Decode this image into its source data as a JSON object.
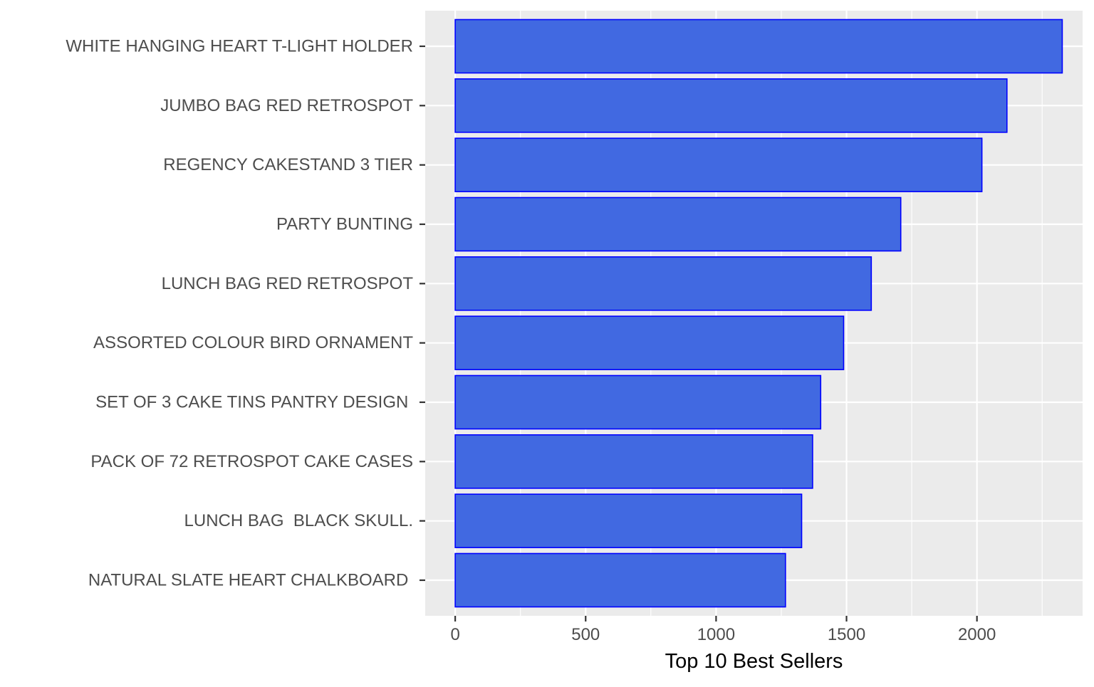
{
  "chart_data": {
    "type": "bar",
    "orientation": "horizontal",
    "categories": [
      "WHITE HANGING HEART T-LIGHT HOLDER",
      "JUMBO BAG RED RETROSPOT",
      "REGENCY CAKESTAND 3 TIER",
      "PARTY BUNTING",
      "LUNCH BAG RED RETROSPOT",
      "ASSORTED COLOUR BIRD ORNAMENT",
      "SET OF 3 CAKE TINS PANTRY DESIGN ",
      "PACK OF 72 RETROSPOT CAKE CASES",
      "LUNCH BAG  BLACK SKULL.",
      "NATURAL SLATE HEART CHALKBOARD "
    ],
    "values": [
      2327,
      2115,
      2019,
      1708,
      1595,
      1489,
      1401,
      1370,
      1328,
      1266
    ],
    "title": "",
    "xlabel": "Top 10 Best Sellers",
    "ylabel": "",
    "xlim": [
      -115,
      2405
    ],
    "xticks": [
      0,
      500,
      1000,
      1500,
      2000
    ],
    "grid": true,
    "colors": {
      "bar_fill": "#4169E1",
      "bar_stroke": "#0000FF",
      "panel_background": "#EBEBEB",
      "grid_major": "#FFFFFF",
      "tick_mark": "#333333",
      "tick_text": "#4D4D4D",
      "axis_title": "#000000"
    }
  }
}
